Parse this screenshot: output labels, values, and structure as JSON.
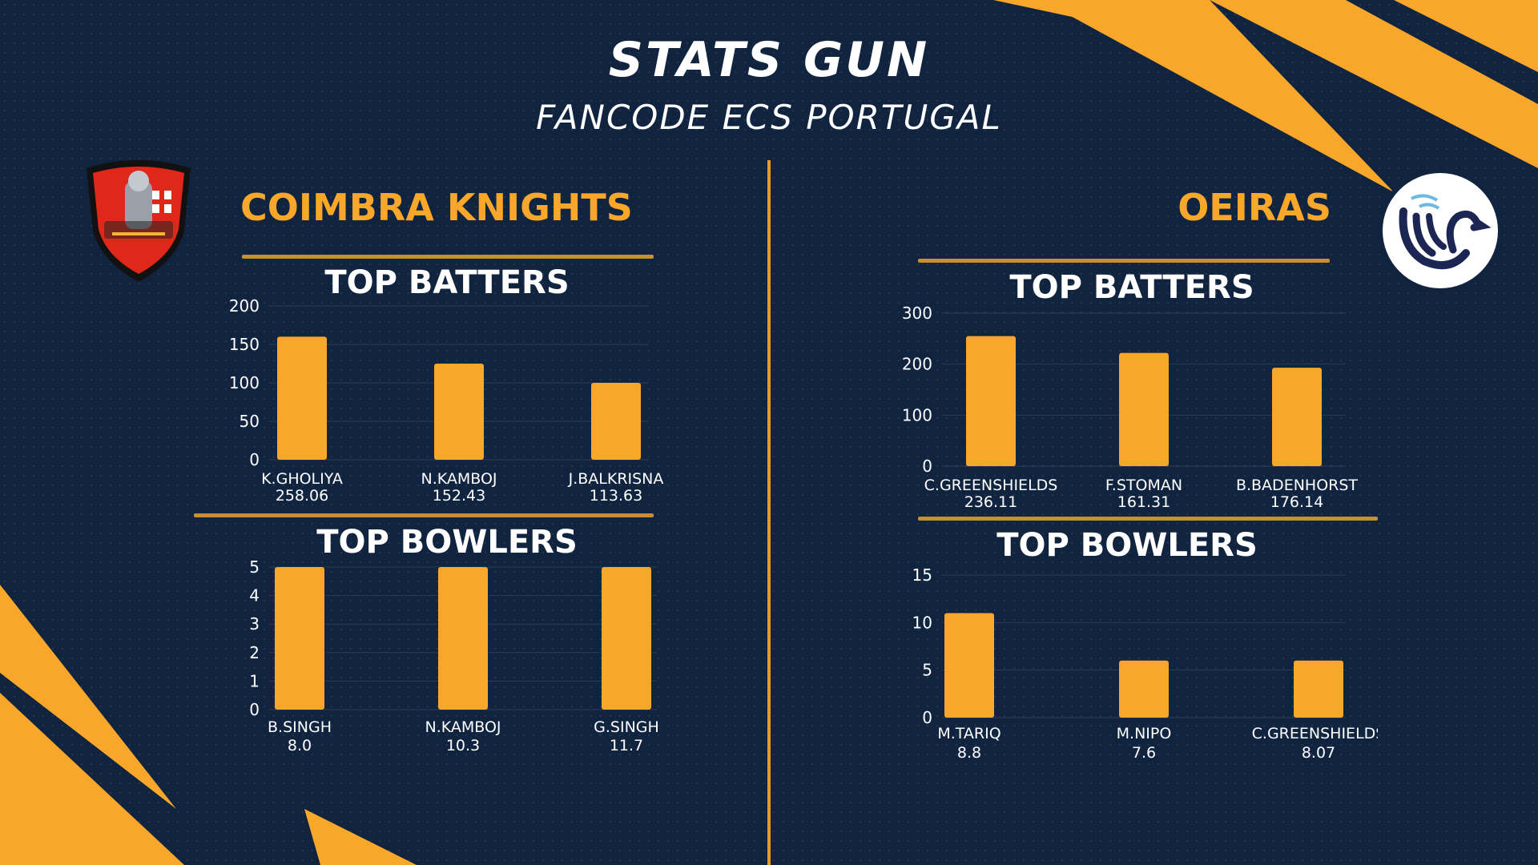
{
  "header": {
    "title": "STATS GUN",
    "subtitle": "FANCODE ECS PORTUGAL"
  },
  "colors": {
    "background": "#10233f",
    "accent": "#f8a72a",
    "bar": "#f8a72a",
    "text": "#ffffff"
  },
  "teams": {
    "left": {
      "name": "COIMBRA KNIGHTS",
      "logo_icon": "knight-shield-icon"
    },
    "right": {
      "name": "OEIRAS",
      "logo_icon": "swan-circle-icon"
    }
  },
  "sections": {
    "left_batters": "TOP BATTERS",
    "left_bowlers": "TOP BOWLERS",
    "right_batters": "TOP BATTERS",
    "right_bowlers": "TOP BOWLERS"
  },
  "chart_data": [
    {
      "id": "left-batters",
      "type": "bar",
      "team": "COIMBRA KNIGHTS",
      "title": "TOP BATTERS",
      "categories": [
        "K.GHOLIYA",
        "N.KAMBOJ",
        "J.BALKRISNA"
      ],
      "category_sublabels": [
        "258.06",
        "152.43",
        "113.63"
      ],
      "values": [
        160,
        125,
        100
      ],
      "ylim": [
        0,
        200
      ],
      "yticks": [
        0,
        50,
        100,
        150,
        200
      ],
      "grid": true
    },
    {
      "id": "left-bowlers",
      "type": "bar",
      "team": "COIMBRA KNIGHTS",
      "title": "TOP BOWLERS",
      "categories": [
        "B.SINGH",
        "N.KAMBOJ",
        "G.SINGH"
      ],
      "category_sublabels": [
        "8.0",
        "10.3",
        "11.7"
      ],
      "values": [
        5,
        5,
        5
      ],
      "ylim": [
        0,
        5
      ],
      "yticks": [
        0,
        1,
        2,
        3,
        4,
        5
      ],
      "grid": true
    },
    {
      "id": "right-batters",
      "type": "bar",
      "team": "OEIRAS",
      "title": "TOP BATTERS",
      "categories": [
        "C.GREENSHIELDS",
        "F.STOMAN",
        "B.BADENHORST"
      ],
      "category_sublabels": [
        "236.11",
        "161.31",
        "176.14"
      ],
      "values": [
        255,
        222,
        193
      ],
      "ylim": [
        0,
        300
      ],
      "yticks": [
        0,
        100,
        200,
        300
      ],
      "grid": true
    },
    {
      "id": "right-bowlers",
      "type": "bar",
      "team": "OEIRAS",
      "title": "TOP BOWLERS",
      "categories": [
        "M.TARIQ",
        "M.NIPO",
        "C.GREENSHIELDS"
      ],
      "category_sublabels": [
        "8.8",
        "7.6",
        "8.07"
      ],
      "values": [
        11,
        6,
        6
      ],
      "ylim": [
        0,
        15
      ],
      "yticks": [
        0,
        5,
        10,
        15
      ],
      "grid": true
    }
  ]
}
